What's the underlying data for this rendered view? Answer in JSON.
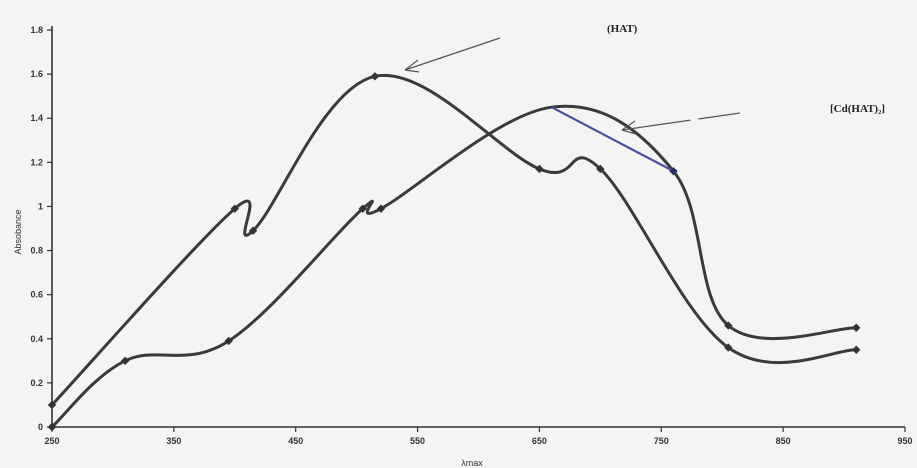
{
  "chart_data": {
    "type": "line",
    "title": "",
    "xlabel": "λmax",
    "ylabel": "Absobance",
    "xlim": [
      250,
      950
    ],
    "ylim": [
      0,
      1.8
    ],
    "x_ticks": [
      "250",
      "350",
      "450",
      "550",
      "650",
      "750",
      "850",
      "950"
    ],
    "y_ticks": [
      "0",
      "0.2",
      "0.4",
      "0.6",
      "0.8",
      "1",
      "1.2",
      "1.4",
      "1.6",
      "1.8"
    ],
    "grid": false,
    "series": [
      {
        "name": "(HAT)",
        "color": "#3a3a3a",
        "x": [
          250,
          400,
          415,
          515,
          650,
          700,
          805,
          910
        ],
        "y": [
          0.1,
          0.99,
          0.89,
          1.59,
          1.17,
          1.17,
          0.36,
          0.35
        ]
      },
      {
        "name": "[Cd(HAT)₂]",
        "color": "#3a3a3a",
        "highlight_color": "#4a4fa0",
        "x": [
          250,
          310,
          395,
          505,
          520,
          660,
          760,
          805,
          910
        ],
        "y": [
          0.0,
          0.3,
          0.39,
          0.99,
          0.99,
          1.45,
          1.16,
          0.46,
          0.45
        ]
      }
    ]
  }
}
